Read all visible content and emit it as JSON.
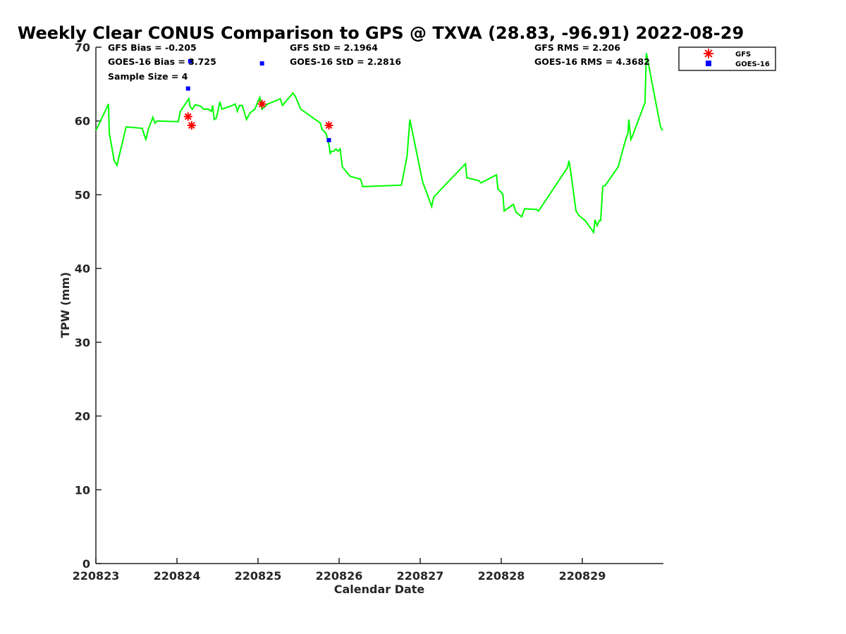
{
  "chart_data": {
    "type": "line",
    "title": "Weekly Clear CONUS Comparison to GPS @ TXVA (28.83, -96.91) 2022-08-29",
    "xlabel": "Calendar Date",
    "ylabel": "TPW (mm)",
    "xlim": [
      0,
      7
    ],
    "ylim": [
      0,
      70
    ],
    "x_units": "days since 220823",
    "xticks": [
      0,
      1,
      2,
      3,
      4,
      5,
      6
    ],
    "xtick_labels": [
      "220823",
      "220824",
      "220825",
      "220826",
      "220827",
      "220828",
      "220829"
    ],
    "yticks": [
      0,
      10,
      20,
      30,
      40,
      50,
      60,
      70
    ],
    "ytick_labels": [
      "0",
      "10",
      "20",
      "30",
      "40",
      "50",
      "60",
      "70"
    ],
    "grid": false,
    "legend_position": "top-right (outside)",
    "stats": [
      {
        "text": "GFS Bias = -0.205"
      },
      {
        "text": "GOES-16 Bias = 3.725"
      },
      {
        "text": "Sample Size = 4"
      },
      {
        "text": "GFS StD = 2.1964"
      },
      {
        "text": "GOES-16 StD = 2.2816"
      },
      {
        "text": "GFS RMS = 2.206"
      },
      {
        "text": "GOES-16 RMS = 4.3682"
      }
    ],
    "series": [
      {
        "name": "GPS",
        "style": "line",
        "color": "#00ff00",
        "x": [
          0,
          0.156,
          0.165,
          0.226,
          0.26,
          0.373,
          0.573,
          0.599,
          0.616,
          0.651,
          0.703,
          0.729,
          0.755,
          1.016,
          1.042,
          1.146,
          1.163,
          1.19,
          1.224,
          1.294,
          1.328,
          1.389,
          1.424,
          1.441,
          1.459,
          1.485,
          1.511,
          1.528,
          1.554,
          1.684,
          1.719,
          1.745,
          1.771,
          1.806,
          1.858,
          1.902,
          1.962,
          1.997,
          2.023,
          2.049,
          2.119,
          2.275,
          2.301,
          2.431,
          2.466,
          2.527,
          2.77,
          2.787,
          2.839,
          2.874,
          2.891,
          2.909,
          2.935,
          2.961,
          2.987,
          3.013,
          3.039,
          3.135,
          3.265,
          3.291,
          3.768,
          3.838,
          3.873,
          4.029,
          4.142,
          4.168,
          4.558,
          4.576,
          4.723,
          4.75,
          4.941,
          4.958,
          5.019,
          5.036,
          5.149,
          5.184,
          5.253,
          5.288,
          5.435,
          5.461,
          5.818,
          5.835,
          5.852,
          5.922,
          5.957,
          6.035,
          6.139,
          6.156,
          6.182,
          6.209,
          6.226,
          6.252,
          6.286,
          6.304,
          6.443,
          6.53,
          6.564,
          6.573,
          6.599,
          6.616,
          6.773,
          6.79,
          6.964,
          6.99
        ],
        "y": [
          58.7,
          62.3,
          58.4,
          54.6,
          54.0,
          59.2,
          59.0,
          58.0,
          57.5,
          59.0,
          60.5,
          59.7,
          60.0,
          59.9,
          61.3,
          63.0,
          61.9,
          61.6,
          62.2,
          62.0,
          61.6,
          61.6,
          61.3,
          62.1,
          60.2,
          60.4,
          61.6,
          62.6,
          61.6,
          62.1,
          62.3,
          61.3,
          62.1,
          62.1,
          60.2,
          61.1,
          61.6,
          62.6,
          63.2,
          61.6,
          62.3,
          63.0,
          62.1,
          63.8,
          63.2,
          61.6,
          59.7,
          58.9,
          58.3,
          56.8,
          55.6,
          55.9,
          55.9,
          56.2,
          55.9,
          56.2,
          53.8,
          52.5,
          52.1,
          51.1,
          51.3,
          55.2,
          60.2,
          51.8,
          48.4,
          49.7,
          54.2,
          52.3,
          51.9,
          51.6,
          52.7,
          50.8,
          50.1,
          47.8,
          48.7,
          47.6,
          47.0,
          48.1,
          48.0,
          47.8,
          53.7,
          54.6,
          53.5,
          47.8,
          47.2,
          46.5,
          44.9,
          46.6,
          45.8,
          46.5,
          46.5,
          51.1,
          51.3,
          51.6,
          53.8,
          57.3,
          58.4,
          60.2,
          57.5,
          57.9,
          62.5,
          69.2,
          59.2,
          58.7
        ]
      },
      {
        "name": "GFS",
        "style": "asterisk",
        "color": "#ff0000",
        "x": [
          1.137,
          1.181,
          2.049,
          2.874
        ],
        "y": [
          60.6,
          59.4,
          62.3,
          59.4
        ]
      },
      {
        "name": "GOES-16",
        "style": "square",
        "color": "#0000ff",
        "x": [
          1.137,
          1.163,
          2.049,
          2.874
        ],
        "y": [
          64.4,
          68.1,
          67.8,
          57.4
        ]
      }
    ]
  }
}
